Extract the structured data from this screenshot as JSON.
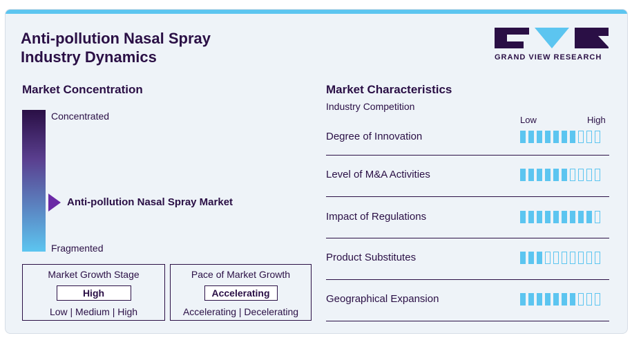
{
  "title": "Anti-pollution Nasal Spray\nIndustry Dynamics",
  "logo": {
    "text": "GRAND VIEW RESEARCH"
  },
  "colors": {
    "dark": "#2a0f45",
    "accent": "#5cc5f0",
    "marker": "#6b2aa6",
    "background": "#eef3f8"
  },
  "concentration": {
    "heading": "Market Concentration",
    "top_label": "Concentrated",
    "bottom_label": "Fragmented",
    "marker_label": "Anti-pollution Nasal Spray Market"
  },
  "growth_stage": {
    "title": "Market Growth Stage",
    "value": "High",
    "options": "Low | Medium | High"
  },
  "growth_pace": {
    "title": "Pace of Market Growth",
    "value": "Accelerating",
    "options": "Accelerating | Decelerating"
  },
  "characteristics": {
    "heading": "Market Characteristics",
    "subheading": "Industry Competition",
    "scale_low": "Low",
    "scale_high": "High",
    "total_segments": 10,
    "rows": [
      {
        "label": "Degree of Innovation",
        "level": 7
      },
      {
        "label": "Level of M&A Activities",
        "level": 6
      },
      {
        "label": "Impact of Regulations",
        "level": 9
      },
      {
        "label": "Product Substitutes",
        "level": 3
      },
      {
        "label": "Geographical Expansion",
        "level": 7
      }
    ]
  }
}
